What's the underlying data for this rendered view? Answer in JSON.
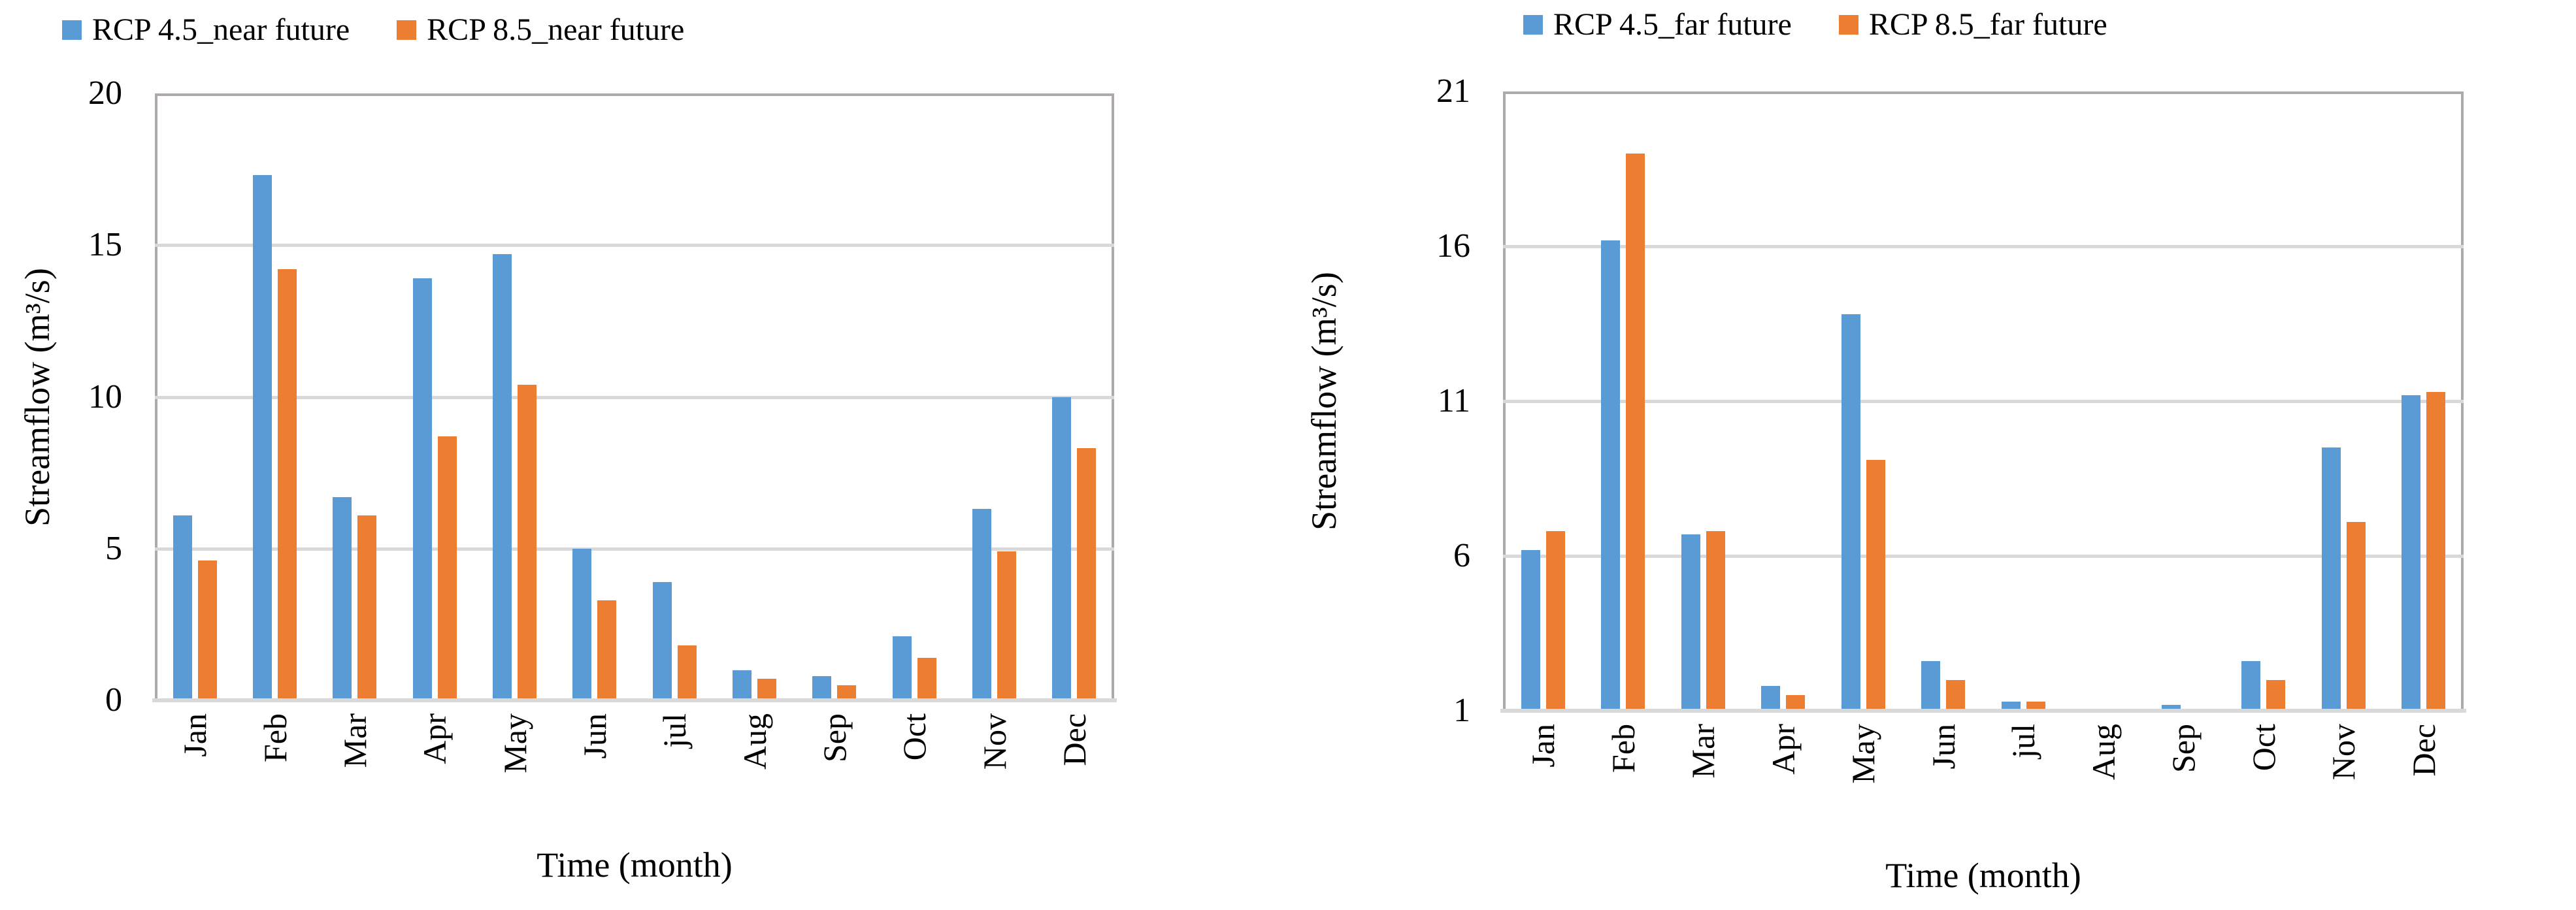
{
  "figure": {
    "background": "#ffffff",
    "series_colors": {
      "rcp45": "#5B9BD5",
      "rcp85": "#ED7D31"
    },
    "grid_color": "#D9D9D9",
    "border_color": "#AFAAAA"
  },
  "chart_data": [
    {
      "type": "bar",
      "id": "near-future",
      "title": "",
      "xlabel": "Time (month)",
      "ylabel": "Streamflow (m³/s)",
      "categories": [
        "Jan",
        "Feb",
        "Mar",
        "Apr",
        "May",
        "Jun",
        "jul",
        "Aug",
        "Sep",
        "Oct",
        "Nov",
        "Dec"
      ],
      "yticks": [
        0,
        5,
        10,
        15,
        20
      ],
      "ylim": [
        0,
        20
      ],
      "grid": true,
      "legend_position": "top",
      "series": [
        {
          "name": "RCP 4.5_near future",
          "color": "#5B9BD5",
          "values": [
            6.1,
            17.3,
            6.7,
            13.9,
            14.7,
            5.0,
            3.9,
            1.0,
            0.8,
            2.1,
            6.3,
            10.0
          ]
        },
        {
          "name": "RCP 8.5_near future",
          "color": "#ED7D31",
          "values": [
            4.6,
            14.2,
            6.1,
            8.7,
            10.4,
            3.3,
            1.8,
            0.7,
            0.5,
            1.4,
            4.9,
            8.3
          ]
        }
      ]
    },
    {
      "type": "bar",
      "id": "far-future",
      "title": "",
      "xlabel": "Time (month)",
      "ylabel": "Streamflow (m³/s)",
      "categories": [
        "Jan",
        "Feb",
        "Mar",
        "Apr",
        "May",
        "Jun",
        "jul",
        "Aug",
        "Sep",
        "Oct",
        "Nov",
        "Dec"
      ],
      "yticks": [
        1,
        6,
        11,
        16,
        21
      ],
      "ylim": [
        1,
        21
      ],
      "grid": true,
      "legend_position": "top",
      "series": [
        {
          "name": "RCP 4.5_far future",
          "color": "#5B9BD5",
          "values": [
            6.2,
            16.2,
            6.7,
            1.8,
            13.8,
            2.6,
            1.3,
            1.0,
            1.2,
            2.6,
            9.5,
            11.2
          ]
        },
        {
          "name": "RCP 8.5_far future",
          "color": "#ED7D31",
          "values": [
            6.8,
            19.0,
            6.8,
            1.5,
            9.1,
            2.0,
            1.3,
            1.0,
            0.9,
            2.0,
            7.1,
            11.3
          ]
        }
      ]
    }
  ]
}
